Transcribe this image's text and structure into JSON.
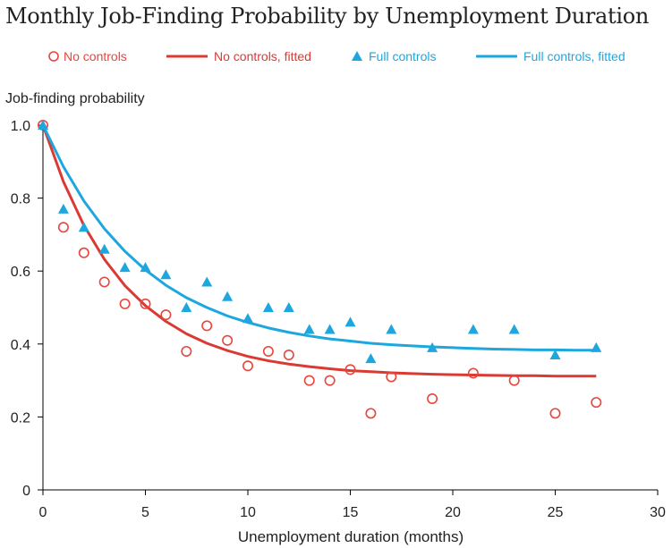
{
  "chart_data": {
    "type": "scatter",
    "title": "Monthly Job-Finding Probability by Unemployment Duration",
    "xlabel": "Unemployment duration (months)",
    "ylabel": "Job-finding probability",
    "xlim": [
      0,
      30
    ],
    "ylim": [
      0,
      1.0
    ],
    "x_ticks": [
      "0",
      "5",
      "10",
      "15",
      "20",
      "25",
      "30"
    ],
    "y_ticks": [
      "0",
      "0.2",
      "0.4",
      "0.6",
      "0.8",
      "1.0"
    ],
    "grid": false,
    "legend_position": "top",
    "legend": [
      {
        "label": "No controls",
        "marker": "circle",
        "color": "#e8453c"
      },
      {
        "label": "No controls, fitted",
        "marker": "line",
        "color": "#d93a33"
      },
      {
        "label": "Full controls",
        "marker": "triangle",
        "color": "#1ea7de"
      },
      {
        "label": "Full controls, fitted",
        "marker": "line",
        "color": "#1ea7de"
      }
    ],
    "series": [
      {
        "name": "No controls",
        "color": "#e8453c",
        "x": [
          0,
          1,
          2,
          3,
          4,
          5,
          6,
          7,
          8,
          9,
          10,
          11,
          12,
          13,
          14,
          15,
          16,
          17,
          19,
          21,
          23,
          25,
          27
        ],
        "y": [
          1.0,
          0.72,
          0.65,
          0.57,
          0.51,
          0.51,
          0.48,
          0.38,
          0.45,
          0.41,
          0.34,
          0.38,
          0.37,
          0.3,
          0.3,
          0.33,
          0.21,
          0.31,
          0.25,
          0.32,
          0.3,
          0.21,
          0.24
        ]
      },
      {
        "name": "No controls, fitted",
        "color": "#d93a33",
        "x": [
          0,
          1,
          2,
          3,
          4,
          5,
          6,
          7,
          8,
          9,
          10,
          11,
          12,
          13,
          14,
          15,
          16,
          17,
          18,
          19,
          20,
          21,
          22,
          23,
          24,
          25,
          26,
          27
        ],
        "y": [
          1.0,
          0.845,
          0.725,
          0.632,
          0.56,
          0.505,
          0.462,
          0.428,
          0.402,
          0.382,
          0.366,
          0.354,
          0.345,
          0.338,
          0.332,
          0.327,
          0.324,
          0.321,
          0.319,
          0.317,
          0.316,
          0.315,
          0.314,
          0.313,
          0.313,
          0.312,
          0.312,
          0.312
        ]
      },
      {
        "name": "Full controls",
        "color": "#1ea7de",
        "x": [
          0,
          1,
          2,
          3,
          4,
          5,
          6,
          7,
          8,
          9,
          10,
          11,
          12,
          13,
          14,
          15,
          16,
          17,
          19,
          21,
          23,
          25,
          27
        ],
        "y": [
          1.0,
          0.77,
          0.72,
          0.66,
          0.61,
          0.61,
          0.59,
          0.5,
          0.57,
          0.53,
          0.47,
          0.5,
          0.5,
          0.44,
          0.44,
          0.46,
          0.36,
          0.44,
          0.39,
          0.44,
          0.44,
          0.37,
          0.39
        ]
      },
      {
        "name": "Full controls, fitted",
        "color": "#1ea7de",
        "x": [
          0,
          1,
          2,
          3,
          4,
          5,
          6,
          7,
          8,
          9,
          10,
          11,
          12,
          13,
          14,
          15,
          16,
          17,
          18,
          19,
          20,
          21,
          22,
          23,
          24,
          25,
          26,
          27
        ],
        "y": [
          1.0,
          0.886,
          0.792,
          0.716,
          0.654,
          0.603,
          0.561,
          0.527,
          0.5,
          0.477,
          0.459,
          0.444,
          0.432,
          0.422,
          0.414,
          0.408,
          0.402,
          0.398,
          0.395,
          0.392,
          0.39,
          0.388,
          0.386,
          0.385,
          0.384,
          0.384,
          0.383,
          0.383
        ]
      }
    ]
  }
}
